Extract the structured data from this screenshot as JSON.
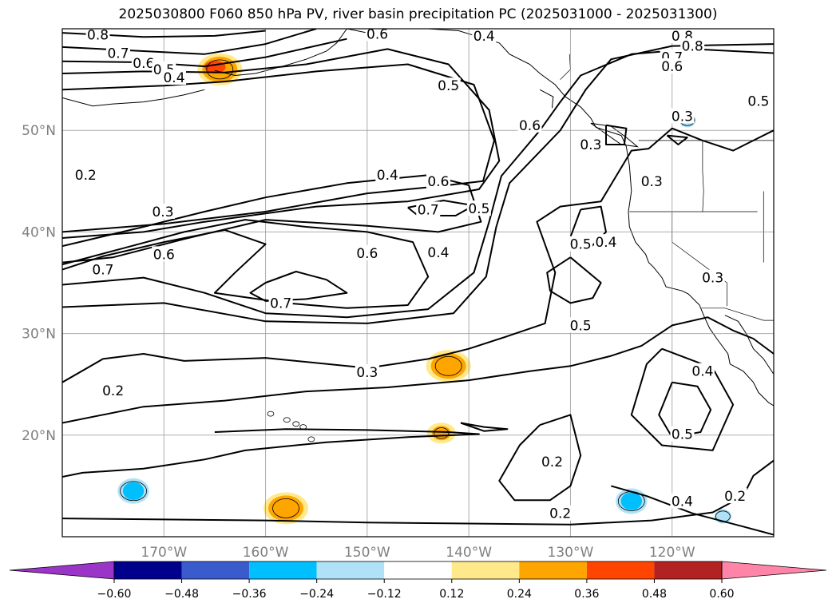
{
  "title": "2025030800 F060 850 hPa PV, river basin precipitation PC (2025031000 - 2025031300)",
  "chart_data": {
    "type": "contour_map",
    "title": "2025030800 F060 850 hPa PV, river basin precipitation PC (2025031000 - 2025031300)",
    "lon_range": [
      -180,
      -110
    ],
    "lat_range": [
      10,
      60
    ],
    "grid": true,
    "lat_ticks": [
      {
        "value": 20,
        "label": "20°N"
      },
      {
        "value": 30,
        "label": "30°N"
      },
      {
        "value": 40,
        "label": "40°N"
      },
      {
        "value": 50,
        "label": "50°N"
      }
    ],
    "lon_ticks": [
      {
        "value": -170,
        "label": "170°W"
      },
      {
        "value": -160,
        "label": "160°W"
      },
      {
        "value": -150,
        "label": "150°W"
      },
      {
        "value": -140,
        "label": "140°W"
      },
      {
        "value": -130,
        "label": "130°W"
      },
      {
        "value": -120,
        "label": "120°W"
      }
    ],
    "contour_labels": [
      {
        "text": "0.8",
        "lon": -176.5,
        "lat": 59.4
      },
      {
        "text": "0.7",
        "lon": -174.5,
        "lat": 57.6
      },
      {
        "text": "0.6",
        "lon": -172.0,
        "lat": 56.6
      },
      {
        "text": "0.5",
        "lon": -170.0,
        "lat": 56.0
      },
      {
        "text": "0.4",
        "lon": -169.0,
        "lat": 55.2
      },
      {
        "text": "0.6",
        "lon": -149.0,
        "lat": 59.5
      },
      {
        "text": "0.5",
        "lon": -142.0,
        "lat": 54.4
      },
      {
        "text": "0.6",
        "lon": -134.0,
        "lat": 50.5
      },
      {
        "text": "0.4",
        "lon": -138.5,
        "lat": 59.3
      },
      {
        "text": "0.8",
        "lon": -119.0,
        "lat": 59.3
      },
      {
        "text": "0.8",
        "lon": -118.0,
        "lat": 58.3
      },
      {
        "text": "0.7",
        "lon": -120.0,
        "lat": 57.2
      },
      {
        "text": "0.6",
        "lon": -120.0,
        "lat": 56.3
      },
      {
        "text": "0.5",
        "lon": -111.5,
        "lat": 52.9
      },
      {
        "text": "0.3",
        "lon": -119.0,
        "lat": 51.4
      },
      {
        "text": "0.3",
        "lon": -128.0,
        "lat": 48.6
      },
      {
        "text": "0.2",
        "lon": -177.7,
        "lat": 45.6
      },
      {
        "text": "0.4",
        "lon": -148.0,
        "lat": 45.6
      },
      {
        "text": "0.6",
        "lon": -143.0,
        "lat": 45.0
      },
      {
        "text": "0.7",
        "lon": -144.0,
        "lat": 42.2
      },
      {
        "text": "0.5",
        "lon": -139.0,
        "lat": 42.3
      },
      {
        "text": "0.3",
        "lon": -170.1,
        "lat": 42.0
      },
      {
        "text": "0.3",
        "lon": -122.0,
        "lat": 45.0
      },
      {
        "text": "0.6",
        "lon": -170.0,
        "lat": 37.8
      },
      {
        "text": "0.6",
        "lon": -150.0,
        "lat": 37.9
      },
      {
        "text": "0.7",
        "lon": -176.0,
        "lat": 36.3
      },
      {
        "text": "0.7",
        "lon": -158.5,
        "lat": 33.0
      },
      {
        "text": "0.4",
        "lon": -143.0,
        "lat": 38.0
      },
      {
        "text": "0.5",
        "lon": -129.0,
        "lat": 38.8
      },
      {
        "text": "0.4",
        "lon": -126.5,
        "lat": 39.0
      },
      {
        "text": "0.3",
        "lon": -116.0,
        "lat": 35.5
      },
      {
        "text": "0.5",
        "lon": -129.0,
        "lat": 30.8
      },
      {
        "text": "0.3",
        "lon": -150.0,
        "lat": 26.2
      },
      {
        "text": "0.2",
        "lon": -175.0,
        "lat": 24.4
      },
      {
        "text": "0.4",
        "lon": -117.0,
        "lat": 26.3
      },
      {
        "text": "0.5",
        "lon": -119.0,
        "lat": 20.1
      },
      {
        "text": "0.2",
        "lon": -131.8,
        "lat": 17.4
      },
      {
        "text": "0.2",
        "lon": -131.0,
        "lat": 12.3
      },
      {
        "text": "0.4",
        "lon": -119.0,
        "lat": 13.5
      },
      {
        "text": "0.2",
        "lon": -113.8,
        "lat": 14.0
      }
    ],
    "colorbar": {
      "ticks": [
        "−0.60",
        "−0.48",
        "−0.36",
        "−0.24",
        "−0.12",
        "0.12",
        "0.24",
        "0.36",
        "0.48",
        "0.60"
      ],
      "colors": [
        "#9a35c8",
        "#00008b",
        "#3a5bcc",
        "#00bfff",
        "#b0e2f7",
        "#ffffff",
        "#ffe98a",
        "#ffa500",
        "#ff4500",
        "#b22222",
        "#ff85a8"
      ]
    },
    "shaded_features": [
      {
        "lon": -164.5,
        "lat": 56.0,
        "value": 0.45,
        "note": "positive"
      },
      {
        "lon": -142.0,
        "lat": 26.8,
        "value": 0.3,
        "note": "positive"
      },
      {
        "lon": -142.7,
        "lat": 20.2,
        "value": 0.15,
        "note": "positive"
      },
      {
        "lon": -158.0,
        "lat": 12.8,
        "value": 0.3,
        "note": "positive"
      },
      {
        "lon": -173.0,
        "lat": 14.5,
        "value": -0.3,
        "note": "negative"
      },
      {
        "lon": -124.0,
        "lat": 13.5,
        "value": -0.3,
        "note": "negative"
      },
      {
        "lon": -118.5,
        "lat": 51.0,
        "value": -0.2,
        "note": "negative"
      },
      {
        "lon": -115.0,
        "lat": 12.0,
        "value": -0.15,
        "note": "negative"
      }
    ]
  }
}
